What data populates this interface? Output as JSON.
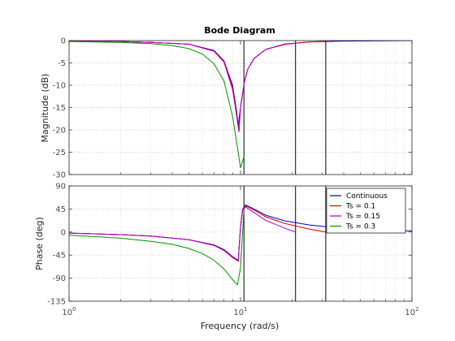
{
  "chart_data": {
    "type": "line",
    "title": "Bode Diagram",
    "xlabel": "Frequency  (rad/s)",
    "xscale": "log",
    "xlim": [
      1,
      100
    ],
    "x_tick_labels": [
      {
        "base": "10",
        "exp": "0"
      },
      {
        "base": "10",
        "exp": "1"
      },
      {
        "base": "10",
        "exp": "2"
      }
    ],
    "grid": "on (dotted)",
    "colors": {
      "Continuous": "#0000c8",
      "Ts = 0.1": "#e00000",
      "Ts = 0.15": "#b400c8",
      "Ts = 0.3": "#009600"
    },
    "nyquist_lines": [
      10.47,
      20.94,
      31.42
    ],
    "magnitude": {
      "ylabel": "Magnitude (dB)",
      "ylim": [
        -30,
        0
      ],
      "yticks": [
        0,
        -5,
        -10,
        -15,
        -20,
        -25,
        -30
      ],
      "series": [
        {
          "name": "Continuous",
          "x": [
            1,
            2,
            3,
            5,
            7,
            8,
            9,
            9.5,
            9.7,
            10,
            10.5,
            11,
            12,
            14,
            18,
            25,
            40,
            100
          ],
          "y": [
            -0.1,
            -0.2,
            -0.4,
            -0.8,
            -2.2,
            -4.5,
            -10,
            -16,
            -19,
            -15,
            -9.5,
            -6.5,
            -4,
            -2,
            -0.8,
            -0.3,
            -0.1,
            0
          ]
        },
        {
          "name": "Ts = 0.1",
          "x": [
            1,
            2,
            3,
            5,
            7,
            8,
            9,
            9.5,
            9.8,
            10,
            10.5,
            11,
            12,
            14,
            18,
            25,
            31.4
          ],
          "y": [
            -0.1,
            -0.2,
            -0.4,
            -0.8,
            -2.3,
            -4.6,
            -10.5,
            -16.5,
            -20,
            -15,
            -9.5,
            -6.5,
            -4,
            -2,
            -0.8,
            -0.3,
            -0.2
          ]
        },
        {
          "name": "Ts = 0.15",
          "x": [
            1,
            2,
            3,
            5,
            7,
            8,
            9,
            9.5,
            9.8,
            10,
            10.5,
            11,
            12,
            14,
            18,
            20.9
          ],
          "y": [
            -0.1,
            -0.2,
            -0.4,
            -0.8,
            -2.4,
            -4.8,
            -11,
            -17,
            -20.5,
            -15,
            -9.5,
            -6.5,
            -4,
            -2,
            -0.9,
            -0.6
          ]
        },
        {
          "name": "Ts = 0.3",
          "x": [
            1,
            2,
            3,
            4,
            5,
            6,
            7,
            8,
            9,
            9.6,
            10,
            10.47
          ],
          "y": [
            -0.2,
            -0.4,
            -0.7,
            -1.1,
            -1.8,
            -3,
            -5.2,
            -9,
            -17,
            -24,
            -28.5,
            -26
          ]
        }
      ]
    },
    "phase": {
      "ylabel": "Phase (deg)",
      "ylim": [
        -135,
        90
      ],
      "yticks": [
        90,
        45,
        0,
        -45,
        -90,
        -135
      ],
      "series": [
        {
          "name": "Continuous",
          "x": [
            1,
            2,
            3,
            5,
            7,
            8,
            9,
            9.7,
            10,
            10.3,
            10.7,
            12,
            14,
            18,
            25,
            40,
            70,
            100
          ],
          "y": [
            -2,
            -5,
            -8,
            -15,
            -25,
            -34,
            -48,
            -55,
            10,
            45,
            53,
            45,
            33,
            22,
            14,
            7,
            3,
            2
          ]
        },
        {
          "name": "Ts = 0.1",
          "x": [
            1,
            2,
            3,
            5,
            7,
            8,
            9,
            9.7,
            10,
            10.3,
            10.7,
            12,
            14,
            18,
            25,
            31.4
          ],
          "y": [
            -2,
            -5,
            -8,
            -15,
            -26,
            -35,
            -49,
            -56,
            10,
            44,
            51,
            43,
            30,
            17,
            6,
            0
          ]
        },
        {
          "name": "Ts = 0.15",
          "x": [
            1,
            2,
            3,
            5,
            7,
            8,
            9,
            9.7,
            10,
            10.3,
            10.7,
            12,
            14,
            18,
            20.9
          ],
          "y": [
            -2,
            -5,
            -8,
            -15,
            -26,
            -36,
            -50,
            -57,
            10,
            43,
            49,
            38,
            23,
            8,
            0
          ]
        },
        {
          "name": "Ts = 0.3",
          "x": [
            1,
            2,
            3,
            4,
            5,
            6,
            7,
            8,
            9,
            9.6,
            10,
            10.47
          ],
          "y": [
            -6,
            -12,
            -18,
            -24,
            -32,
            -42,
            -55,
            -72,
            -93,
            -103,
            -70,
            45
          ]
        }
      ]
    },
    "legend": {
      "position": "top-right of phase plot",
      "entries": [
        "Continuous",
        "Ts = 0.1",
        "Ts = 0.15",
        "Ts = 0.3"
      ]
    }
  }
}
